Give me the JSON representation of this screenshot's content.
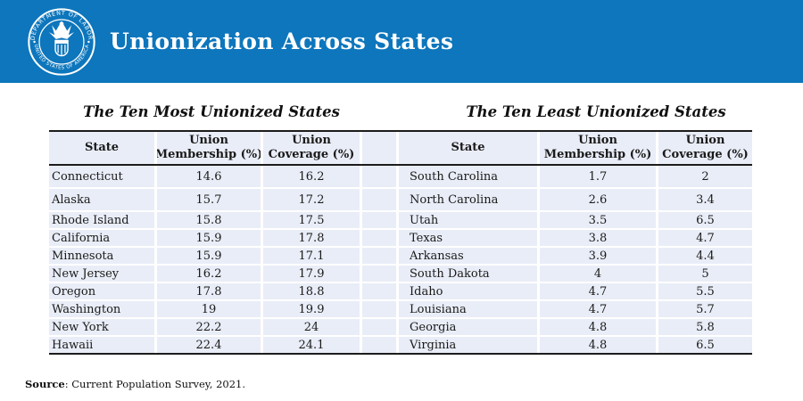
{
  "banner": {
    "title": "Unionization Across States",
    "seal": "us-department-of-labor-seal",
    "seal_text_top": "DEPARTMENT OF LABOR",
    "seal_text_bottom": "UNITED STATES OF AMERICA"
  },
  "left_table": {
    "title": "The Ten Most Unionized States",
    "headers": [
      {
        "lines": [
          "State"
        ]
      },
      {
        "lines": [
          "Union",
          "Membership (%)"
        ]
      },
      {
        "lines": [
          "Union",
          "Coverage (%)"
        ]
      }
    ],
    "rows": [
      [
        "Connecticut",
        "14.6",
        "16.2"
      ],
      [
        "Alaska",
        "15.7",
        "17.2"
      ],
      [
        "Rhode Island",
        "15.8",
        "17.5"
      ],
      [
        "California",
        "15.9",
        "17.8"
      ],
      [
        "Minnesota",
        "15.9",
        "17.1"
      ],
      [
        "New Jersey",
        "16.2",
        "17.9"
      ],
      [
        "Oregon",
        "17.8",
        "18.8"
      ],
      [
        "Washington",
        "19",
        "19.9"
      ],
      [
        "New York",
        "22.2",
        "24"
      ],
      [
        "Hawaii",
        "22.4",
        "24.1"
      ]
    ]
  },
  "right_table": {
    "title": "The Ten Least Unionized States",
    "headers": [
      {
        "lines": [
          "State"
        ]
      },
      {
        "lines": [
          "Union",
          "Membership (%)"
        ]
      },
      {
        "lines": [
          "Union",
          "Coverage (%)"
        ]
      }
    ],
    "rows": [
      [
        "South Carolina",
        "1.7",
        "2"
      ],
      [
        "North Carolina",
        "2.6",
        "3.4"
      ],
      [
        "Utah",
        "3.5",
        "6.5"
      ],
      [
        "Texas",
        "3.8",
        "4.7"
      ],
      [
        "Arkansas",
        "3.9",
        "4.4"
      ],
      [
        "South Dakota",
        "4",
        "5"
      ],
      [
        "Idaho",
        "4.7",
        "5.5"
      ],
      [
        "Louisiana",
        "4.7",
        "5.7"
      ],
      [
        "Georgia",
        "4.8",
        "5.8"
      ],
      [
        "Virginia",
        "4.8",
        "6.5"
      ]
    ]
  },
  "source": {
    "label": "Source",
    "text": ": Current Population Survey, 2021."
  },
  "colors": {
    "banner_blue": "#0d76bc",
    "cell_background": "#e9edf7",
    "border_dark": "#1c1c1c",
    "text_white": "#ffffff"
  }
}
